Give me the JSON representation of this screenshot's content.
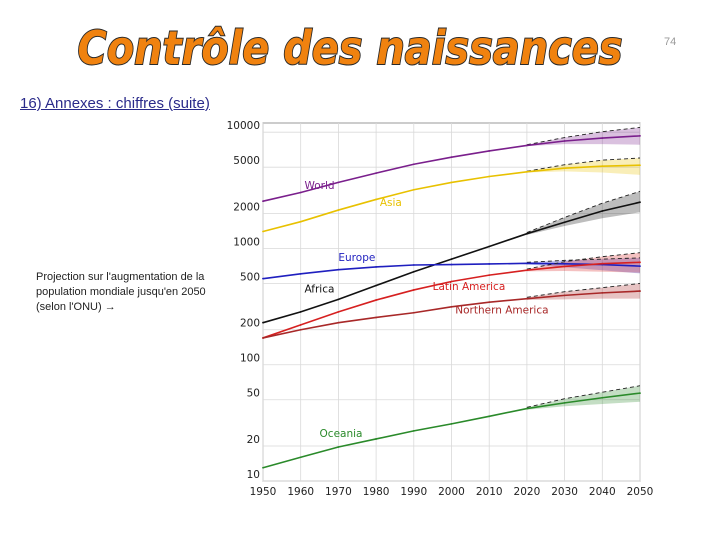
{
  "slide": {
    "title": "Contrôle des naissances",
    "page_number": "74",
    "subtitle": "16) Annexes : chiffres (suite)",
    "caption": "Projection sur l'augmentation de la population mondiale jusqu'en 2050 (selon l'ONU) →",
    "title_color": "#f0820f",
    "title_outline": "#2a2a2a"
  },
  "chart_data": {
    "type": "line",
    "title": "",
    "xlabel": "",
    "ylabel": "",
    "yscale": "log",
    "xlim": [
      1950,
      2050
    ],
    "ylim": [
      10,
      12000
    ],
    "grid": true,
    "x_ticks": [
      1950,
      1960,
      1970,
      1980,
      1990,
      2000,
      2010,
      2020,
      2030,
      2040,
      2050
    ],
    "y_ticks": [
      10,
      20,
      50,
      100,
      200,
      500,
      1000,
      2000,
      5000,
      10000
    ],
    "x": [
      1950,
      1960,
      1970,
      1980,
      1990,
      2000,
      2010,
      2020,
      2030,
      2040,
      2050
    ],
    "series": [
      {
        "name": "World",
        "color": "#7a1f8c",
        "values": [
          2550,
          3030,
          3700,
          4450,
          5300,
          6100,
          6900,
          7700,
          8400,
          8900,
          9300
        ],
        "upper": [
          null,
          null,
          null,
          null,
          null,
          null,
          null,
          7800,
          9000,
          10100,
          11000
        ],
        "lower": [
          null,
          null,
          null,
          null,
          null,
          null,
          null,
          7600,
          7900,
          7900,
          7800
        ]
      },
      {
        "name": "Asia",
        "color": "#e8c100",
        "values": [
          1400,
          1700,
          2140,
          2640,
          3200,
          3700,
          4160,
          4560,
          4900,
          5100,
          5200
        ],
        "upper": [
          null,
          null,
          null,
          null,
          null,
          null,
          null,
          4620,
          5250,
          5750,
          6000
        ],
        "lower": [
          null,
          null,
          null,
          null,
          null,
          null,
          null,
          4500,
          4600,
          4500,
          4300
        ]
      },
      {
        "name": "Africa",
        "color": "#111111",
        "values": [
          230,
          285,
          365,
          480,
          630,
          810,
          1040,
          1340,
          1680,
          2100,
          2500
        ],
        "upper": [
          null,
          null,
          null,
          null,
          null,
          null,
          null,
          1370,
          1850,
          2450,
          3100
        ],
        "lower": [
          null,
          null,
          null,
          null,
          null,
          null,
          null,
          1310,
          1560,
          1820,
          2050
        ]
      },
      {
        "name": "Europe",
        "color": "#1f1fbf",
        "values": [
          550,
          605,
          657,
          694,
          721,
          727,
          736,
          745,
          738,
          727,
          705
        ],
        "upper": [
          null,
          null,
          null,
          null,
          null,
          null,
          null,
          760,
          790,
          810,
          830
        ],
        "lower": [
          null,
          null,
          null,
          null,
          null,
          null,
          null,
          730,
          690,
          650,
          610
        ]
      },
      {
        "name": "Latin America",
        "color": "#d62020",
        "values": [
          170,
          220,
          285,
          360,
          440,
          520,
          590,
          650,
          700,
          740,
          760
        ],
        "upper": [
          null,
          null,
          null,
          null,
          null,
          null,
          null,
          665,
          770,
          850,
          920
        ],
        "lower": [
          null,
          null,
          null,
          null,
          null,
          null,
          null,
          635,
          640,
          630,
          620
        ]
      },
      {
        "name": "Northern America",
        "color": "#a82828",
        "values": [
          170,
          200,
          230,
          255,
          280,
          315,
          345,
          370,
          395,
          415,
          430
        ],
        "upper": [
          null,
          null,
          null,
          null,
          null,
          null,
          null,
          380,
          425,
          460,
          500
        ],
        "lower": [
          null,
          null,
          null,
          null,
          null,
          null,
          null,
          360,
          365,
          370,
          370
        ]
      },
      {
        "name": "Oceania",
        "color": "#2a8a2a",
        "values": [
          13,
          16,
          19.6,
          23,
          27,
          31,
          36,
          42,
          47,
          52,
          57
        ],
        "upper": [
          null,
          null,
          null,
          null,
          null,
          null,
          null,
          43,
          51,
          58,
          66
        ],
        "lower": [
          null,
          null,
          null,
          null,
          null,
          null,
          null,
          41,
          44,
          46,
          48
        ]
      }
    ],
    "series_labels": [
      {
        "name": "World",
        "x": 1961,
        "y": 3250
      },
      {
        "name": "Asia",
        "x": 1981,
        "y": 2330
      },
      {
        "name": "Europe",
        "x": 1970,
        "y": 780
      },
      {
        "name": "Africa",
        "x": 1961,
        "y": 420
      },
      {
        "name": "Latin America",
        "x": 1995,
        "y": 440
      },
      {
        "name": "Northern America",
        "x": 2001,
        "y": 275
      },
      {
        "name": "Oceania",
        "x": 1965,
        "y": 24
      }
    ]
  }
}
